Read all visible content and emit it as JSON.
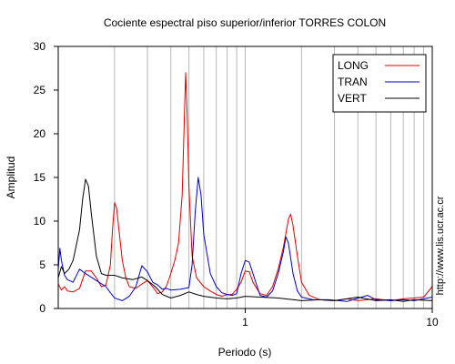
{
  "chart_data": {
    "type": "line",
    "title": "Cociente espectral piso superior/inferior  TORRES COLON",
    "xlabel": "Periodo (s)",
    "ylabel": "Amplitud",
    "x_scale": "log",
    "xlim": [
      0.1,
      10
    ],
    "ylim": [
      0,
      30
    ],
    "x_ticks": [
      1,
      10
    ],
    "x_tick_labels": [
      "1",
      "10"
    ],
    "y_ticks": [
      0,
      5,
      10,
      15,
      20,
      25,
      30
    ],
    "y_tick_labels": [
      "0",
      "5",
      "10",
      "15",
      "20",
      "25",
      "30"
    ],
    "grid": "vertical log minor",
    "legend_position": "top-right",
    "side_text": "http://www.lis.ucr.ac.cr",
    "series": [
      {
        "name": "LONG",
        "color": "#e00000",
        "points": [
          [
            0.1,
            2.8
          ],
          [
            0.104,
            2.1
          ],
          [
            0.108,
            2.5
          ],
          [
            0.112,
            2
          ],
          [
            0.12,
            1.9
          ],
          [
            0.13,
            2.3
          ],
          [
            0.14,
            4.3
          ],
          [
            0.15,
            4.3
          ],
          [
            0.16,
            3.5
          ],
          [
            0.17,
            2.5
          ],
          [
            0.18,
            2.7
          ],
          [
            0.19,
            5
          ],
          [
            0.195,
            9
          ],
          [
            0.2,
            12.1
          ],
          [
            0.205,
            11.5
          ],
          [
            0.21,
            9.5
          ],
          [
            0.22,
            5.5
          ],
          [
            0.23,
            3.5
          ],
          [
            0.24,
            2.5
          ],
          [
            0.26,
            2.3
          ],
          [
            0.28,
            2.8
          ],
          [
            0.3,
            3.2
          ],
          [
            0.32,
            2.5
          ],
          [
            0.34,
            1.7
          ],
          [
            0.36,
            1.9
          ],
          [
            0.38,
            2.6
          ],
          [
            0.4,
            4
          ],
          [
            0.42,
            5.5
          ],
          [
            0.44,
            7.5
          ],
          [
            0.46,
            13
          ],
          [
            0.47,
            20
          ],
          [
            0.48,
            27
          ],
          [
            0.49,
            22
          ],
          [
            0.5,
            14
          ],
          [
            0.52,
            6
          ],
          [
            0.55,
            3.5
          ],
          [
            0.6,
            2.5
          ],
          [
            0.65,
            2
          ],
          [
            0.7,
            1.6
          ],
          [
            0.75,
            1.4
          ],
          [
            0.8,
            1.6
          ],
          [
            0.85,
            1.6
          ],
          [
            0.9,
            2.2
          ],
          [
            0.95,
            3
          ],
          [
            1,
            4.3
          ],
          [
            1.05,
            4.2
          ],
          [
            1.1,
            3
          ],
          [
            1.2,
            1.7
          ],
          [
            1.3,
            1.5
          ],
          [
            1.4,
            2.5
          ],
          [
            1.5,
            4.5
          ],
          [
            1.6,
            7
          ],
          [
            1.7,
            10.2
          ],
          [
            1.75,
            10.8
          ],
          [
            1.8,
            9.5
          ],
          [
            1.9,
            6
          ],
          [
            2,
            3
          ],
          [
            2.2,
            1.5
          ],
          [
            2.5,
            1
          ],
          [
            3,
            0.9
          ],
          [
            3.5,
            1.1
          ],
          [
            4,
            0.9
          ],
          [
            5,
            1.1
          ],
          [
            6,
            0.9
          ],
          [
            7,
            1.1
          ],
          [
            8,
            1.2
          ],
          [
            9,
            1.3
          ],
          [
            10,
            2.5
          ]
        ]
      },
      {
        "name": "TRAN",
        "color": "#0000d0",
        "points": [
          [
            0.1,
            4.5
          ],
          [
            0.102,
            6.9
          ],
          [
            0.104,
            5.5
          ],
          [
            0.108,
            3.8
          ],
          [
            0.112,
            3.3
          ],
          [
            0.12,
            3
          ],
          [
            0.13,
            4.5
          ],
          [
            0.14,
            4
          ],
          [
            0.16,
            3.2
          ],
          [
            0.18,
            2.5
          ],
          [
            0.19,
            1.8
          ],
          [
            0.2,
            1.2
          ],
          [
            0.22,
            0.9
          ],
          [
            0.24,
            1.4
          ],
          [
            0.26,
            2.5
          ],
          [
            0.28,
            4.9
          ],
          [
            0.3,
            4.2
          ],
          [
            0.32,
            3
          ],
          [
            0.34,
            2.7
          ],
          [
            0.36,
            2.2
          ],
          [
            0.38,
            2.3
          ],
          [
            0.4,
            2.1
          ],
          [
            0.45,
            2.2
          ],
          [
            0.5,
            2.4
          ],
          [
            0.52,
            5
          ],
          [
            0.54,
            11
          ],
          [
            0.56,
            15
          ],
          [
            0.58,
            13
          ],
          [
            0.6,
            8.5
          ],
          [
            0.65,
            4
          ],
          [
            0.7,
            2.5
          ],
          [
            0.75,
            1.8
          ],
          [
            0.8,
            1.6
          ],
          [
            0.85,
            1.5
          ],
          [
            0.9,
            1.7
          ],
          [
            0.95,
            4
          ],
          [
            1,
            5.5
          ],
          [
            1.05,
            5.3
          ],
          [
            1.1,
            4
          ],
          [
            1.2,
            1.5
          ],
          [
            1.3,
            1.3
          ],
          [
            1.4,
            2
          ],
          [
            1.5,
            4
          ],
          [
            1.6,
            6.5
          ],
          [
            1.65,
            8.2
          ],
          [
            1.7,
            7.5
          ],
          [
            1.8,
            4
          ],
          [
            1.9,
            2
          ],
          [
            2,
            1.3
          ],
          [
            2.3,
            1
          ],
          [
            2.8,
            1
          ],
          [
            3.5,
            0.8
          ],
          [
            4.5,
            1.5
          ],
          [
            5,
            1
          ],
          [
            6,
            0.9
          ],
          [
            7,
            1
          ],
          [
            8,
            0.9
          ],
          [
            9,
            1.1
          ],
          [
            10,
            1.3
          ]
        ]
      },
      {
        "name": "VERT",
        "color": "#000000",
        "points": [
          [
            0.1,
            3.5
          ],
          [
            0.104,
            4.8
          ],
          [
            0.108,
            4
          ],
          [
            0.114,
            4.5
          ],
          [
            0.12,
            5.5
          ],
          [
            0.13,
            9
          ],
          [
            0.135,
            12.5
          ],
          [
            0.14,
            14.8
          ],
          [
            0.145,
            14
          ],
          [
            0.15,
            11
          ],
          [
            0.16,
            6
          ],
          [
            0.17,
            4
          ],
          [
            0.18,
            3.8
          ],
          [
            0.2,
            3.8
          ],
          [
            0.22,
            3.5
          ],
          [
            0.25,
            3.3
          ],
          [
            0.28,
            3.6
          ],
          [
            0.3,
            3.2
          ],
          [
            0.33,
            2.5
          ],
          [
            0.36,
            1.6
          ],
          [
            0.4,
            1.2
          ],
          [
            0.45,
            1.5
          ],
          [
            0.5,
            1.9
          ],
          [
            0.55,
            1.6
          ],
          [
            0.6,
            1.4
          ],
          [
            0.7,
            1.2
          ],
          [
            0.8,
            1.1
          ],
          [
            0.9,
            1.2
          ],
          [
            1,
            1.4
          ],
          [
            1.2,
            1.3
          ],
          [
            1.5,
            1.2
          ],
          [
            2,
            0.9
          ],
          [
            2.5,
            1
          ],
          [
            3,
            0.9
          ],
          [
            4,
            1.3
          ],
          [
            5,
            0.9
          ],
          [
            6,
            1
          ],
          [
            7,
            0.8
          ],
          [
            8,
            1
          ],
          [
            10,
            0.9
          ]
        ]
      }
    ]
  }
}
